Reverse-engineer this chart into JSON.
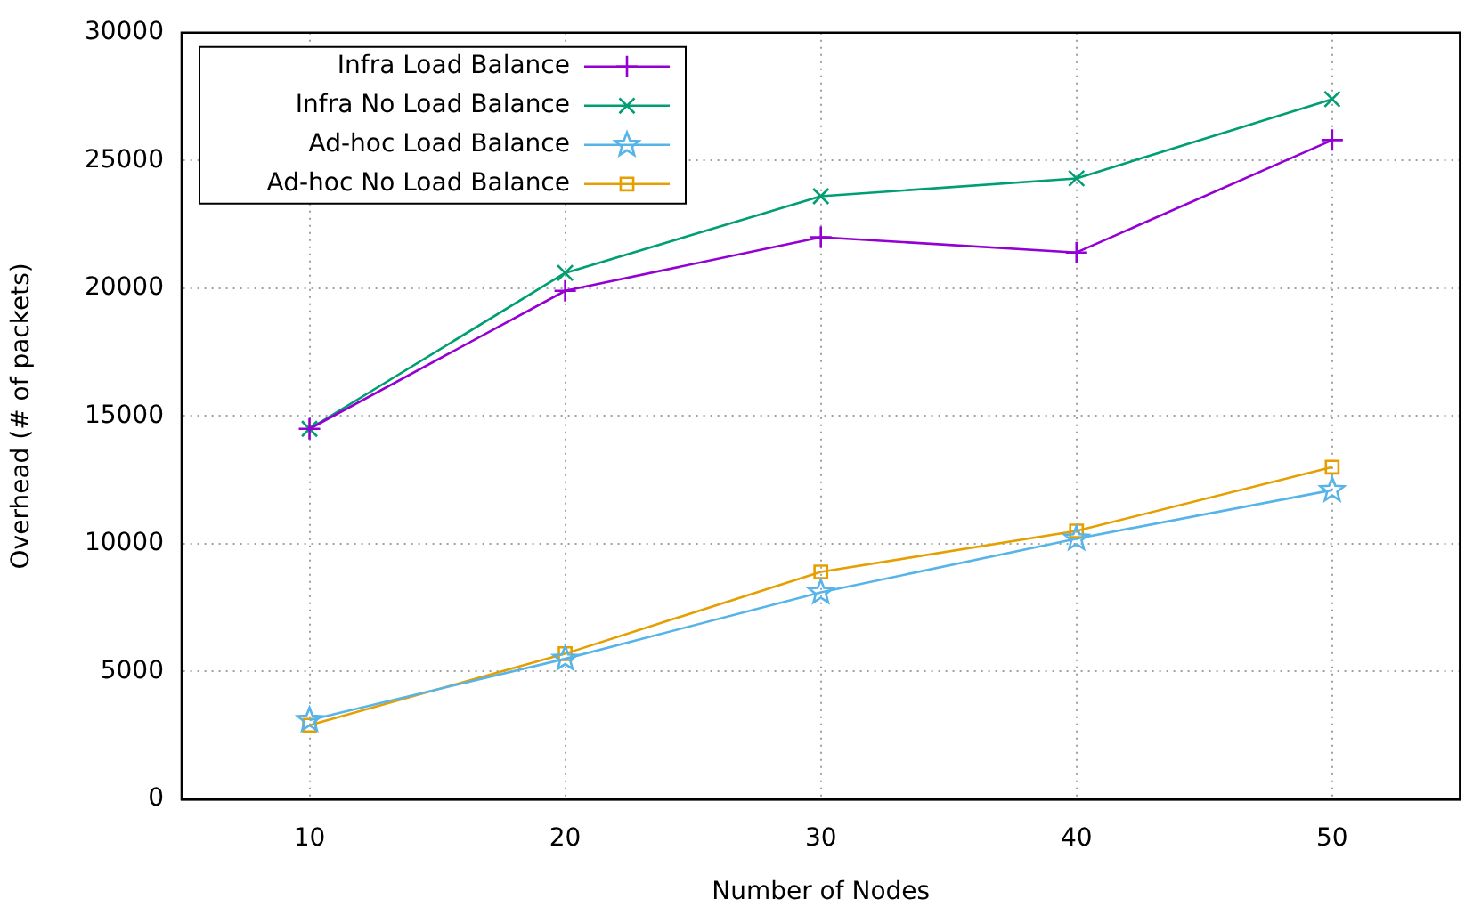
{
  "chart_data": {
    "type": "line",
    "xlabel": "Number of Nodes",
    "ylabel": "Overhead (# of packets)",
    "x": [
      10,
      20,
      30,
      40,
      50
    ],
    "series": [
      {
        "name": "Infra Load Balance",
        "color": "#9400d3",
        "marker": "cross",
        "values": [
          14500,
          19900,
          22000,
          21400,
          25800
        ]
      },
      {
        "name": "Infra No Load Balance",
        "color": "#009e73",
        "marker": "x",
        "values": [
          14500,
          20600,
          23600,
          24300,
          27400
        ]
      },
      {
        "name": "Ad-hoc Load Balance",
        "color": "#56b4e9",
        "marker": "star",
        "values": [
          3100,
          5500,
          8100,
          10200,
          12100
        ]
      },
      {
        "name": "Ad-hoc No Load Balance",
        "color": "#e69f00",
        "marker": "square",
        "values": [
          2900,
          5700,
          8900,
          10500,
          13000
        ]
      }
    ],
    "xlim": [
      5,
      55
    ],
    "xticks": [
      10,
      20,
      30,
      40,
      50
    ],
    "ylim": [
      0,
      30000
    ],
    "yticks": [
      0,
      5000,
      10000,
      15000,
      20000,
      25000,
      30000
    ],
    "grid": true,
    "legend": "top left"
  }
}
